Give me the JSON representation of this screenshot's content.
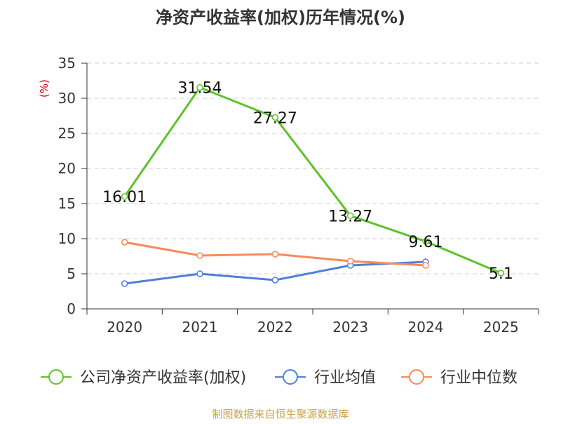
{
  "chart_data": {
    "type": "line",
    "title": "净资产收益率(加权)历年情况(%)",
    "ylabel": "(%)",
    "xlabel": "",
    "categories": [
      "2020",
      "2021",
      "2022",
      "2023",
      "2024",
      "2025"
    ],
    "ylim": [
      0,
      35
    ],
    "yticks": [
      0,
      5,
      10,
      15,
      20,
      25,
      30,
      35
    ],
    "grid": true,
    "legend_position": "bottom",
    "series": [
      {
        "name": "公司净资产收益率(加权)",
        "color": "#5fc22a",
        "values": [
          16.01,
          31.54,
          27.27,
          13.27,
          9.61,
          5.1
        ],
        "labels": [
          "16.01",
          "31.54",
          "27.27",
          "13.27",
          "9.61",
          "5.1"
        ]
      },
      {
        "name": "行业均值",
        "color": "#4f7fdb",
        "values": [
          3.6,
          5.0,
          4.1,
          6.2,
          6.7,
          null
        ]
      },
      {
        "name": "行业中位数",
        "color": "#f78a5a",
        "values": [
          9.5,
          7.6,
          7.8,
          6.8,
          6.2,
          null
        ]
      }
    ]
  },
  "footer": {
    "source": "制图数据来自恒生聚源数据库",
    "source_color": "#c8a44a"
  },
  "colors": {
    "axis": "#333333",
    "grid": "#cccccc",
    "ylabel": "#cc0000",
    "title": "#333333"
  }
}
